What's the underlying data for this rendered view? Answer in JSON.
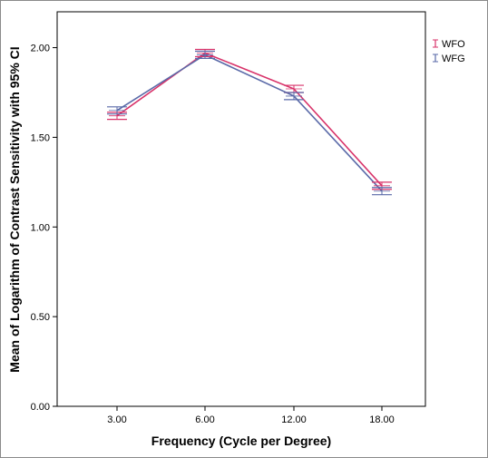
{
  "chart_data": {
    "type": "line",
    "title": "",
    "xlabel": "Frequency (Cycle per Degree)",
    "ylabel": "Mean of Logarithm of Contrast Sensitivity with 95% CI",
    "categories": [
      "3.00",
      "6.00",
      "12.00",
      "18.00"
    ],
    "ylim": [
      0,
      2.2
    ],
    "yticks": [
      "0.00",
      "0.50",
      "1.00",
      "1.50",
      "2.00"
    ],
    "ytick_values": [
      0,
      0.5,
      1.0,
      1.5,
      2.0
    ],
    "grid": false,
    "legend_position": "top-right, outside plot",
    "error_bars": "95% CI",
    "series": [
      {
        "name": "WFO",
        "color": "#d8336a",
        "values": [
          1.62,
          1.97,
          1.77,
          1.23
        ],
        "ci_low": [
          1.6,
          1.95,
          1.75,
          1.21
        ],
        "ci_high": [
          1.64,
          1.99,
          1.79,
          1.25
        ]
      },
      {
        "name": "WFG",
        "color": "#5a6aa8",
        "values": [
          1.65,
          1.96,
          1.73,
          1.2
        ],
        "ci_low": [
          1.63,
          1.94,
          1.71,
          1.18
        ],
        "ci_high": [
          1.67,
          1.98,
          1.75,
          1.22
        ]
      }
    ]
  }
}
